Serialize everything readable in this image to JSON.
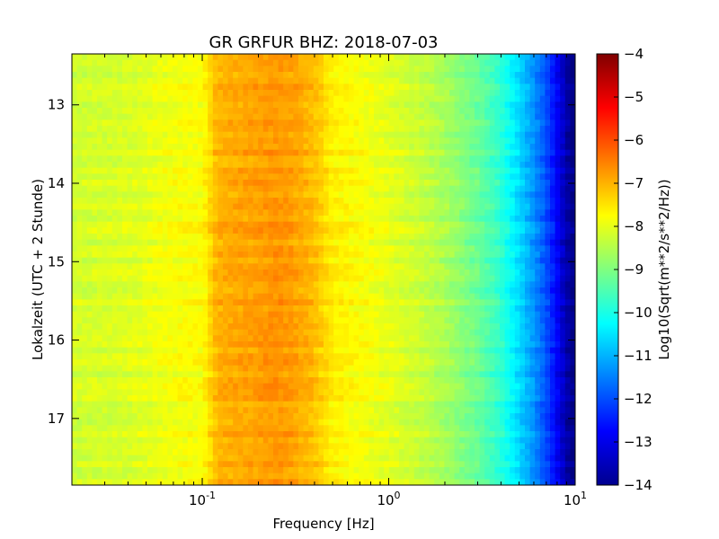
{
  "chart_data": {
    "type": "heatmap",
    "title": "GR GRFUR BHZ: 2018-07-03",
    "xlabel": "Frequency [Hz]",
    "ylabel": "Lokalzeit (UTC + 2 Stunde)",
    "colorbar_label": "Log10(Sqrt(m**2/s**2/Hz))",
    "x_scale": "log",
    "xlim": [
      0.02,
      10
    ],
    "ylim": [
      12.35,
      17.85
    ],
    "y_inverted": true,
    "clim": [
      -14,
      -4
    ],
    "colormap": "jet",
    "x_ticks": [
      {
        "value": 0.1,
        "base": "10",
        "exp": "-1"
      },
      {
        "value": 1,
        "base": "10",
        "exp": "0"
      },
      {
        "value": 10,
        "base": "10",
        "exp": "1"
      }
    ],
    "y_ticks": [
      13,
      14,
      15,
      16,
      17
    ],
    "y_tick_labels": [
      "13",
      "14",
      "15",
      "16",
      "17"
    ],
    "colorbar_ticks": [
      -4,
      -5,
      -6,
      -7,
      -8,
      -9,
      -10,
      -11,
      -12,
      -13,
      -14
    ],
    "colorbar_tick_labels": [
      "−4",
      "−5",
      "−6",
      "−7",
      "−8",
      "−9",
      "−10",
      "−11",
      "−12",
      "−13",
      "−14"
    ],
    "spectrum_profile": {
      "frequency_hz": [
        0.02,
        0.04,
        0.06,
        0.08,
        0.1,
        0.12,
        0.15,
        0.2,
        0.25,
        0.3,
        0.4,
        0.5,
        0.7,
        1.0,
        1.5,
        2.0,
        3.0,
        4.0,
        5.0,
        6.0,
        7.0,
        8.0,
        9.0,
        10.0
      ],
      "log10_amplitude": [
        -8.2,
        -8.1,
        -7.9,
        -7.8,
        -7.8,
        -7.0,
        -6.9,
        -6.8,
        -6.7,
        -6.8,
        -7.1,
        -7.6,
        -7.8,
        -8.0,
        -8.3,
        -8.6,
        -9.2,
        -9.8,
        -10.6,
        -11.3,
        -12.0,
        -12.8,
        -13.6,
        -14.0
      ]
    }
  }
}
